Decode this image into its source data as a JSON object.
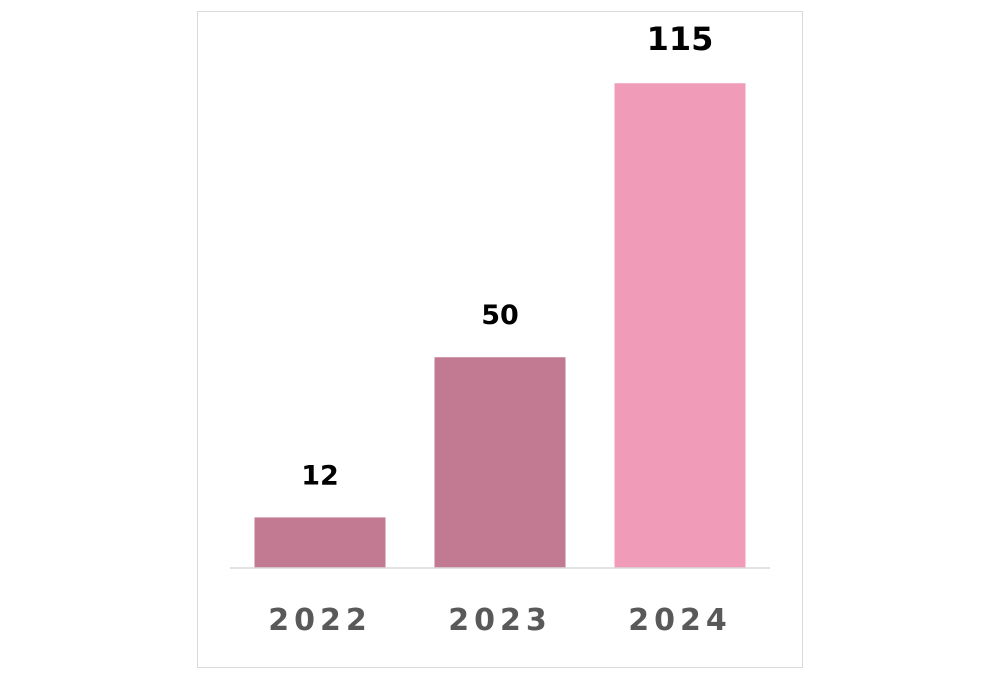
{
  "chart_data": {
    "type": "bar",
    "categories": [
      "2022",
      "2023",
      "2024"
    ],
    "values": [
      12,
      50,
      115
    ],
    "data_labels": [
      "12",
      "50",
      "115"
    ],
    "title": "",
    "xlabel": "",
    "ylabel": "",
    "ylim": [
      0,
      130
    ],
    "grid": false,
    "legend": "none",
    "bar_colors": [
      "#c27a93",
      "#c27a93",
      "#f09bb8"
    ],
    "axis_color": "#d9d9d9",
    "tick_label_color": "#595959",
    "value_label_color": "#000000"
  }
}
